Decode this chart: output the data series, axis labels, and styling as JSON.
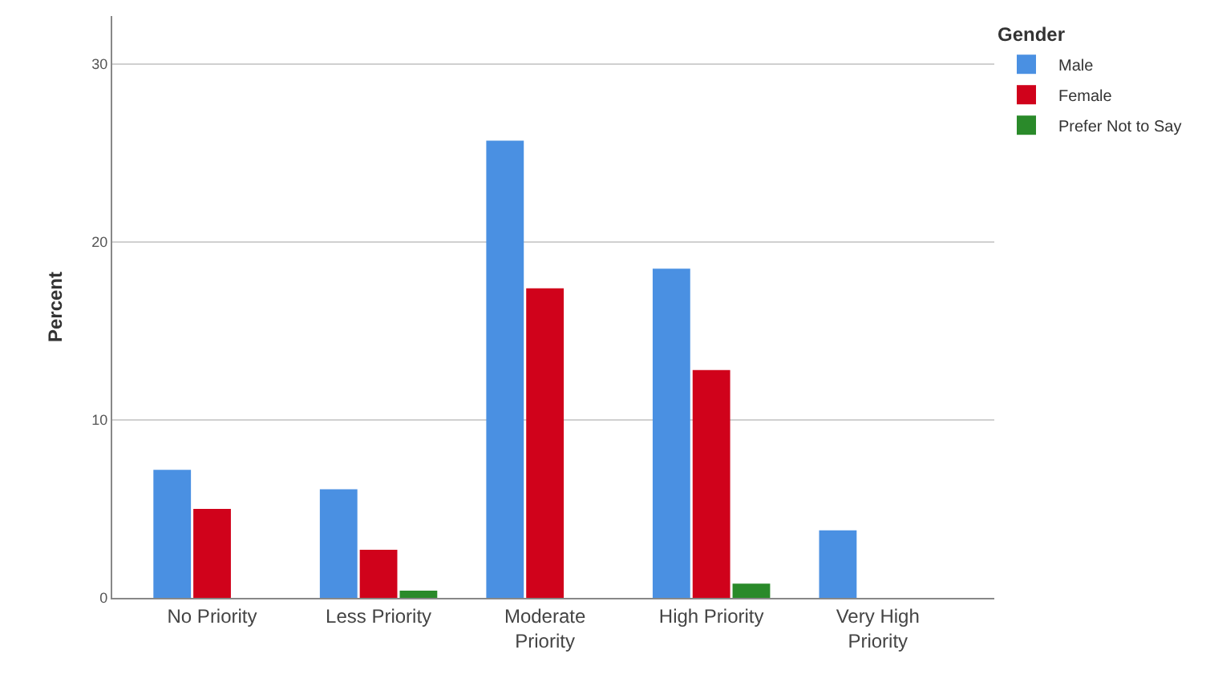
{
  "chart_data": {
    "type": "bar",
    "ylabel": "Percent",
    "legend_title": "Gender",
    "categories": [
      "No Priority",
      "Less Priority",
      "Moderate\nPriority",
      "High Priority",
      "Very High\nPriority"
    ],
    "series": [
      {
        "name": "Male",
        "color": "#4a90e2",
        "values": [
          7.2,
          6.1,
          25.7,
          18.5,
          3.8
        ]
      },
      {
        "name": "Female",
        "color": "#d0021b",
        "values": [
          5.0,
          2.7,
          17.4,
          12.8,
          null
        ]
      },
      {
        "name": "Prefer Not to Say",
        "color": "#2a8a2a",
        "values": [
          null,
          0.4,
          null,
          0.8,
          null
        ]
      }
    ],
    "ylim": [
      0,
      32.7
    ],
    "yticks": [
      0,
      10,
      20,
      30
    ],
    "grid": "y",
    "legend": "top right"
  }
}
